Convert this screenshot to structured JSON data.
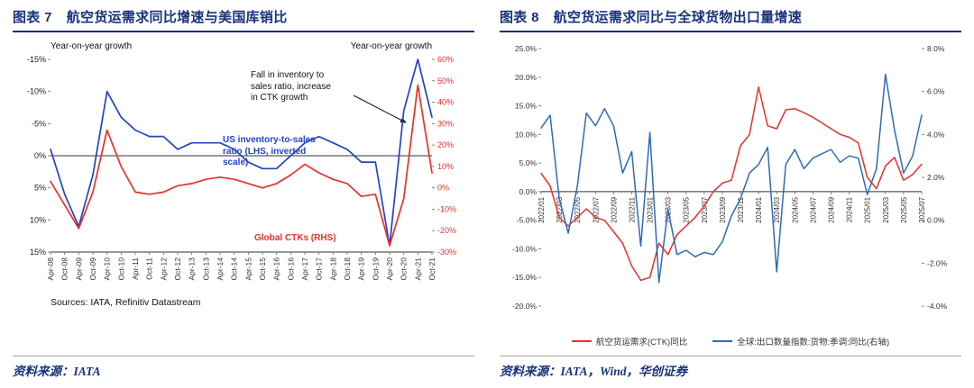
{
  "colors": {
    "navy": "#16337a",
    "blue": "#2444c6",
    "red": "#e8312a",
    "axis": "#333333",
    "footer_line": "#a6a6a6"
  },
  "left_panel": {
    "title_prefix": "图表 7",
    "title": "航空货运需求同比增速与美国库销比",
    "annotation": "Fall in inventory to\nsales ratio, increase\nin CTK growth",
    "label_blue": "US inventory-to-sales\nratio (LHS, inverted\nscale)",
    "label_red": "Global CTKs (RHS)",
    "sources": "Sources: IATA, Refinitiv Datastream",
    "footer": "资料来源：IATA"
  },
  "right_panel": {
    "title_prefix": "图表 8",
    "title": "航空货运需求同比与全球货物出口量增速",
    "legend": [
      {
        "label": "航空货运需求(CTK)同比",
        "color": "#e8312a"
      },
      {
        "label": "全球:出口数量指数:货物:季调:同比(右轴)",
        "color": "#2b6cb8"
      }
    ],
    "footer": "资料来源：IATA，Wind，华创证券"
  },
  "chart_data": [
    {
      "id": "chart1",
      "type": "line",
      "title": "航空货运需求同比增速与美国库销比",
      "x_labels": [
        "Apr-08",
        "Oct-08",
        "Apr-09",
        "Oct-09",
        "Apr-10",
        "Oct-10",
        "Apr-11",
        "Oct-11",
        "Apr-12",
        "Oct-12",
        "Apr-13",
        "Oct-13",
        "Apr-14",
        "Oct-14",
        "Apr-15",
        "Oct-15",
        "Apr-16",
        "Oct-16",
        "Apr-17",
        "Oct-17",
        "Apr-18",
        "Oct-18",
        "Apr-19",
        "Oct-19",
        "Apr-20",
        "Oct-20",
        "Apr-21",
        "Oct-21"
      ],
      "axes": {
        "left": {
          "title": "Year-on-year growth",
          "min": -15,
          "max": 15,
          "inverted": true,
          "ticks": [
            "-15%",
            "-10%",
            "-5%",
            "0%",
            "5%",
            "10%",
            "15%"
          ]
        },
        "right": {
          "title": "Year-on-year growth",
          "min": -30,
          "max": 60,
          "inverted": false,
          "ticks": [
            "60%",
            "50%",
            "40%",
            "30%",
            "20%",
            "10%",
            "0%",
            "-10%",
            "-20%",
            "-30%"
          ]
        }
      },
      "series": [
        {
          "name": "US inventory-to-sales ratio (LHS, inverted scale)",
          "axis": "left",
          "color": "#2444c6",
          "values": [
            -1,
            6,
            11,
            3,
            -10,
            -6,
            -4,
            -3,
            -3,
            -1,
            -2,
            -2,
            -2,
            -1,
            1,
            2,
            2,
            0,
            -2,
            -3,
            -2,
            -1,
            1,
            1,
            14,
            -7,
            -15,
            -6
          ]
        },
        {
          "name": "Global CTKs (RHS)",
          "axis": "right",
          "color": "#e8312a",
          "values": [
            3,
            -8,
            -19,
            -2,
            27,
            10,
            -2,
            -3,
            -2,
            1,
            2,
            4,
            5,
            4,
            2,
            0,
            2,
            6,
            11,
            7,
            4,
            2,
            -4,
            -3,
            -27,
            -5,
            48,
            7
          ]
        }
      ],
      "annotation": "Fall in inventory to sales ratio, increase in CTK growth",
      "legend_position": "in-plot-labels",
      "grid": false
    },
    {
      "id": "chart2",
      "type": "line",
      "title": "航空货运需求同比与全球货物出口量增速",
      "x_labels": [
        "2022/01",
        "2022/02",
        "2022/03",
        "2022/04",
        "2022/05",
        "2022/06",
        "2022/07",
        "2022/08",
        "2022/09",
        "2022/10",
        "2022/11",
        "2022/12",
        "2023/01",
        "2023/02",
        "2023/03",
        "2023/04",
        "2023/05",
        "2023/06",
        "2023/07",
        "2023/08",
        "2023/09",
        "2023/10",
        "2023/11",
        "2023/12",
        "2024/01",
        "2024/02",
        "2024/03",
        "2024/04",
        "2024/05",
        "2024/06",
        "2024/07",
        "2024/08",
        "2024/09",
        "2024/10",
        "2024/11",
        "2024/12",
        "2025/01",
        "2025/02",
        "2025/03",
        "2025/04",
        "2025/05",
        "2025/06",
        "2025/07"
      ],
      "x_tick_every": 2,
      "axes": {
        "left": {
          "title": "",
          "min": -20,
          "max": 25,
          "inverted": false,
          "ticks": [
            "25.0%",
            "20.0%",
            "15.0%",
            "10.0%",
            "5.0%",
            "0.0%",
            "-5.0%",
            "-10.0%",
            "-15.0%",
            "-20.0%"
          ]
        },
        "right": {
          "title": "",
          "min": -4,
          "max": 8,
          "inverted": false,
          "ticks": [
            "8.0%",
            "6.0%",
            "4.0%",
            "2.0%",
            "0.0%",
            "-2.0%",
            "-4.0%"
          ]
        }
      },
      "series": [
        {
          "name": "航空货运需求(CTK)同比",
          "axis": "left",
          "color": "#e8312a",
          "values": [
            3.2,
            1.0,
            -4.5,
            -6.0,
            -4.5,
            -3.0,
            -4.5,
            -5.0,
            -7.0,
            -9.0,
            -13.0,
            -15.5,
            -15.0,
            -9.0,
            -11.0,
            -7.5,
            -6.0,
            -4.5,
            -2.5,
            0.0,
            1.5,
            2.0,
            8.0,
            10.0,
            18.3,
            11.5,
            11.0,
            14.3,
            14.5,
            13.8,
            13.0,
            12.0,
            11.0,
            10.0,
            9.5,
            8.5,
            2.5,
            0.5,
            4.5,
            6.0,
            2.0,
            3.0,
            4.8
          ]
        },
        {
          "name": "全球:出口数量指数:货物:季调:同比(右轴)",
          "axis": "right",
          "color": "#2b6cb8",
          "values": [
            4.3,
            4.9,
            1.0,
            -0.6,
            1.6,
            5.0,
            4.4,
            5.2,
            4.4,
            2.2,
            3.2,
            -1.2,
            4.1,
            -2.9,
            0.5,
            -1.6,
            -1.4,
            -1.7,
            -1.5,
            -1.6,
            -1.0,
            0.2,
            1.0,
            2.2,
            2.6,
            3.4,
            -2.4,
            2.6,
            3.3,
            2.4,
            2.9,
            3.1,
            3.3,
            2.7,
            3.0,
            2.9,
            1.2,
            2.4,
            6.8,
            4.2,
            2.2,
            3.0,
            4.9
          ]
        }
      ],
      "legend_position": "bottom",
      "grid": false
    }
  ]
}
